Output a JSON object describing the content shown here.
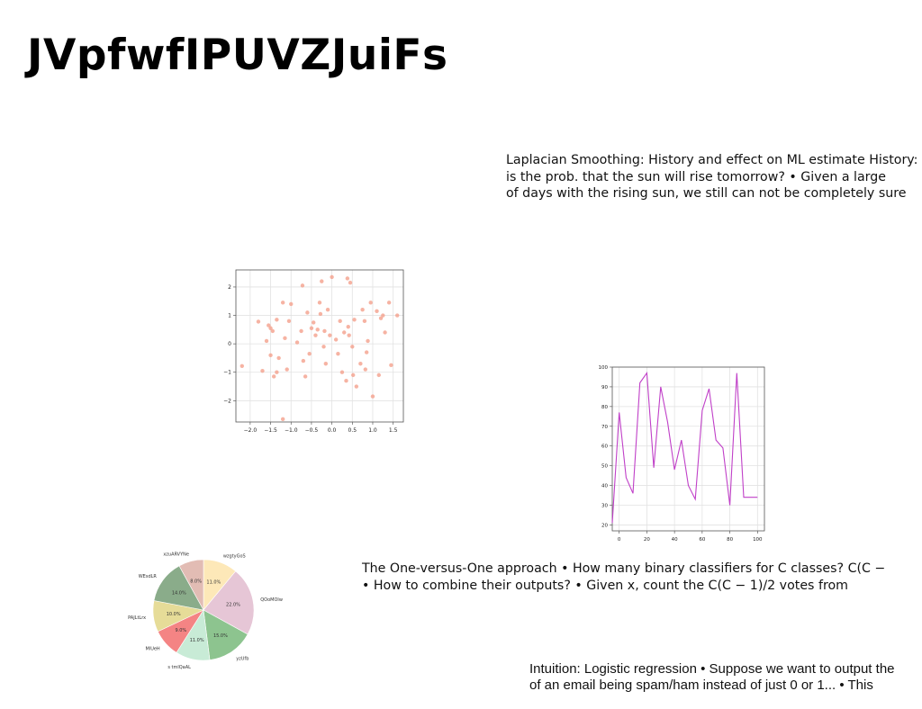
{
  "slide": {
    "title": "JVpfwfIPUVZJuiFs",
    "text_blocks": [
      {
        "id": "laplacian",
        "lines": [
          "Laplacian Smoothing: History and effect on ML estimate History:",
          "is the prob. that the sun will rise tomorrow? • Given a large",
          "of days with the rising sun, we still can not be completely sure"
        ]
      },
      {
        "id": "one-vs-one",
        "lines": [
          "The One-versus-One approach • How many binary classifiers for C classes? C(C −",
          "• How to combine their outputs? • Given x, count the C(C − 1)/2 votes from"
        ]
      },
      {
        "id": "intuition",
        "lines": [
          "Intuition: Logistic regression • Suppose we want to output the",
          "of an email being spam/ham instead of just 0 or 1... • This"
        ]
      }
    ]
  },
  "chart_data": [
    {
      "type": "scatter",
      "xlim": [
        -2.35,
        1.75
      ],
      "ylim": [
        -2.75,
        2.6
      ],
      "x_ticks": [
        -2.0,
        -1.5,
        -1.0,
        -0.5,
        0.0,
        0.5,
        1.0,
        1.5
      ],
      "x_tick_labels": [
        "−2.0",
        "−1.5",
        "−1.0",
        "−0.5",
        "0.0",
        "0.5",
        "1.0",
        "1.5"
      ],
      "y_ticks": [
        -2,
        -1,
        0,
        1,
        2
      ],
      "y_tick_labels": [
        "−2",
        "−1",
        "0",
        "1",
        "2"
      ],
      "grid": true,
      "color": "#f4a08c",
      "points": [
        [
          -2.2,
          -0.78
        ],
        [
          -1.8,
          0.78
        ],
        [
          -1.7,
          -0.95
        ],
        [
          -1.6,
          0.1
        ],
        [
          -1.55,
          0.65
        ],
        [
          -1.5,
          0.55
        ],
        [
          -1.5,
          -0.4
        ],
        [
          -1.45,
          0.45
        ],
        [
          -1.42,
          -1.15
        ],
        [
          -1.35,
          0.85
        ],
        [
          -1.35,
          -1.0
        ],
        [
          -1.3,
          -0.5
        ],
        [
          -1.2,
          1.45
        ],
        [
          -1.15,
          0.2
        ],
        [
          -1.1,
          -0.9
        ],
        [
          -1.05,
          0.8
        ],
        [
          -1.0,
          1.4
        ],
        [
          -0.85,
          0.05
        ],
        [
          -0.75,
          0.45
        ],
        [
          -0.72,
          2.05
        ],
        [
          -0.7,
          -0.6
        ],
        [
          -0.65,
          -1.15
        ],
        [
          -0.6,
          1.1
        ],
        [
          -0.55,
          -0.35
        ],
        [
          -0.5,
          0.55
        ],
        [
          -0.45,
          0.75
        ],
        [
          -0.4,
          0.3
        ],
        [
          -0.35,
          0.5
        ],
        [
          -0.3,
          1.45
        ],
        [
          -0.25,
          2.2
        ],
        [
          -0.2,
          -0.1
        ],
        [
          -0.18,
          0.45
        ],
        [
          -0.15,
          -0.7
        ],
        [
          -0.1,
          1.2
        ],
        [
          -0.05,
          0.3
        ],
        [
          0.0,
          2.35
        ],
        [
          0.1,
          0.15
        ],
        [
          0.15,
          -0.35
        ],
        [
          0.2,
          0.8
        ],
        [
          0.25,
          -1.0
        ],
        [
          0.3,
          0.4
        ],
        [
          0.35,
          -1.3
        ],
        [
          0.38,
          2.3
        ],
        [
          0.4,
          0.6
        ],
        [
          0.42,
          0.3
        ],
        [
          0.45,
          2.15
        ],
        [
          0.5,
          -0.1
        ],
        [
          0.52,
          -1.1
        ],
        [
          0.55,
          0.85
        ],
        [
          0.6,
          -1.5
        ],
        [
          0.7,
          -0.7
        ],
        [
          0.75,
          1.2
        ],
        [
          0.8,
          0.8
        ],
        [
          0.82,
          -0.9
        ],
        [
          0.85,
          -0.3
        ],
        [
          0.88,
          0.1
        ],
        [
          0.95,
          1.45
        ],
        [
          1.0,
          -1.85
        ],
        [
          1.1,
          1.15
        ],
        [
          1.15,
          -1.1
        ],
        [
          1.2,
          0.9
        ],
        [
          1.25,
          1.0
        ],
        [
          1.3,
          0.4
        ],
        [
          1.4,
          1.45
        ],
        [
          1.45,
          -0.75
        ],
        [
          1.6,
          1.0
        ],
        [
          -1.2,
          -2.65
        ],
        [
          -0.28,
          1.05
        ]
      ]
    },
    {
      "type": "line",
      "xlim": [
        -5,
        105
      ],
      "ylim": [
        17,
        100
      ],
      "x_ticks": [
        0,
        20,
        40,
        60,
        80,
        100
      ],
      "x_tick_labels": [
        "0",
        "20",
        "40",
        "60",
        "80",
        "100"
      ],
      "y_ticks": [
        20,
        30,
        40,
        50,
        60,
        70,
        80,
        90,
        100
      ],
      "y_tick_labels": [
        "20",
        "30",
        "40",
        "50",
        "60",
        "70",
        "80",
        "90",
        "100"
      ],
      "grid": true,
      "color": "#c040c8",
      "series": [
        {
          "x": [
            -5,
            0,
            5,
            10,
            15,
            20,
            25,
            30,
            35,
            40,
            45,
            50,
            55,
            60,
            65,
            70,
            75,
            80,
            85,
            90,
            95,
            100
          ],
          "values": [
            21,
            77,
            44,
            36,
            92,
            97,
            49,
            90,
            72,
            48,
            63,
            40,
            33,
            78,
            89,
            63,
            59,
            30,
            97,
            34,
            34,
            34
          ]
        }
      ]
    },
    {
      "type": "pie",
      "categories": [
        "wzgtyGoS",
        "QOoMOlw",
        "yzUfb",
        "s tmlQaAL",
        "MlUeH",
        "PAJLtLrx",
        "WEsdLR",
        "xzuARVYNe"
      ],
      "values": [
        11.0,
        22.0,
        15.0,
        11.0,
        9.0,
        10.0,
        14.0,
        8.0
      ],
      "value_labels": [
        "11.0%",
        "22.0%",
        "15.0%",
        "11.0%",
        "9.0%",
        "10.0%",
        "14.0%",
        "8.0%"
      ],
      "colors": [
        "#fde8b8",
        "#e6c6d6",
        "#8dc48f",
        "#c8ebd6",
        "#f48484",
        "#e6dc98",
        "#8aac8a",
        "#e2bcb4"
      ]
    }
  ]
}
